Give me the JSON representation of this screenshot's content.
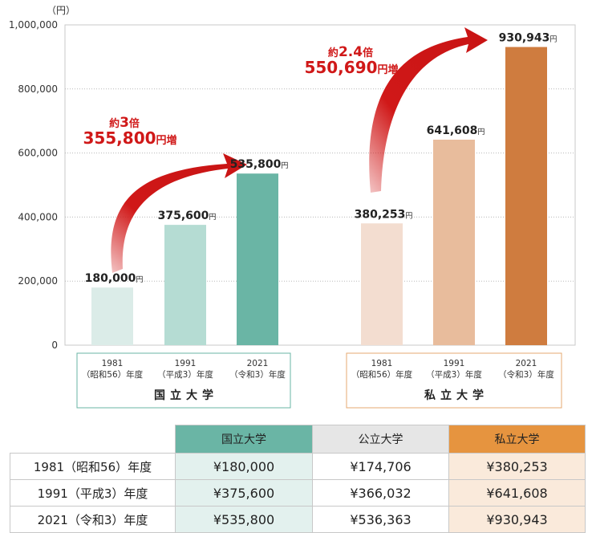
{
  "chart_data": {
    "type": "bar",
    "unit_label": "（円）",
    "ylim": [
      0,
      1000000
    ],
    "y_ticks": [
      "1,000,000",
      "800,000",
      "600,000",
      "400,000",
      "200,000",
      "0"
    ],
    "y_tick_values": [
      1000000,
      800000,
      600000,
      400000,
      200000,
      0
    ],
    "grid": "dotted horizontal",
    "groups": [
      {
        "name": "国立大学",
        "bars": [
          {
            "value": 180000,
            "label": "180,000",
            "color": "#dbece8"
          },
          {
            "value": 375600,
            "label": "375,600",
            "color": "#b5dcd3"
          },
          {
            "value": 535800,
            "label": "535,800",
            "color": "#6ab5a5"
          }
        ],
        "annotation": {
          "prefix": "約",
          "ratio": "3",
          "suffix": "倍",
          "increase": "355,800",
          "increase_suffix": "円増"
        }
      },
      {
        "name": "私立大学",
        "bars": [
          {
            "value": 380253,
            "label": "380,253",
            "color": "#f3ddd0"
          },
          {
            "value": 641608,
            "label": "641,608",
            "color": "#e8bc9c"
          },
          {
            "value": 930943,
            "label": "930,943",
            "color": "#cf7c3f"
          }
        ],
        "annotation": {
          "prefix": "約",
          "ratio": "2.4",
          "suffix": "倍",
          "increase": "550,690",
          "increase_suffix": "円増"
        }
      }
    ],
    "categories": [
      {
        "year": "1981",
        "era": "（昭和56）年度"
      },
      {
        "year": "1991",
        "era": "（平成3）年度"
      },
      {
        "year": "2021",
        "era": "（令和3）年度"
      }
    ],
    "value_suffix": "円"
  },
  "table": {
    "headers": [
      "国立大学",
      "公立大学",
      "私立大学"
    ],
    "rows": [
      {
        "label": "1981（昭和56）年度",
        "values": [
          "¥180,000",
          "¥174,706",
          "¥380,253"
        ]
      },
      {
        "label": "1991（平成3）年度",
        "values": [
          "¥375,600",
          "¥366,032",
          "¥641,608"
        ]
      },
      {
        "label": "2021（令和3）年度",
        "values": [
          "¥535,800",
          "¥536,363",
          "¥930,943"
        ]
      }
    ]
  },
  "colors": {
    "arrow": "#d01818",
    "national_border": "#6ab5a5",
    "private_border": "#e6a870",
    "frame": "#c8c8c8"
  }
}
